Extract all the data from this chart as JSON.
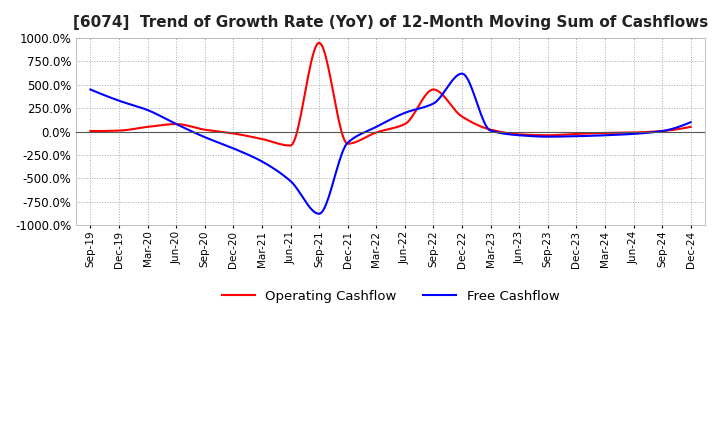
{
  "title": "[6074]  Trend of Growth Rate (YoY) of 12-Month Moving Sum of Cashflows",
  "title_fontsize": 11,
  "ylim": [
    -1000,
    1000
  ],
  "yticks": [
    -1000,
    -750,
    -500,
    -250,
    0,
    250,
    500,
    750,
    1000
  ],
  "ytick_labels": [
    "-1000.0%",
    "-750.0%",
    "-500.0%",
    "-250.0%",
    "0.0%",
    "250.0%",
    "500.0%",
    "750.0%",
    "1000.0%"
  ],
  "background_color": "#ffffff",
  "plot_bg_color": "#ffffff",
  "grid_color": "#aaaaaa",
  "operating_color": "#ff0000",
  "free_color": "#0000ff",
  "legend_labels": [
    "Operating Cashflow",
    "Free Cashflow"
  ],
  "x_labels": [
    "Sep-19",
    "Dec-19",
    "Mar-20",
    "Jun-20",
    "Sep-20",
    "Dec-20",
    "Mar-21",
    "Jun-21",
    "Sep-21",
    "Dec-21",
    "Mar-22",
    "Jun-22",
    "Sep-22",
    "Dec-22",
    "Mar-23",
    "Jun-23",
    "Sep-23",
    "Dec-23",
    "Mar-24",
    "Jun-24",
    "Sep-24",
    "Dec-24"
  ],
  "operating_cashflow": [
    5,
    10,
    50,
    80,
    20,
    -20,
    -80,
    -150,
    950,
    -130,
    -10,
    80,
    450,
    160,
    20,
    -30,
    -40,
    -25,
    -15,
    -10,
    5,
    50
  ],
  "free_cashflow": [
    450,
    330,
    230,
    80,
    -60,
    -180,
    -320,
    -530,
    -880,
    -120,
    50,
    200,
    300,
    620,
    10,
    -40,
    -55,
    -50,
    -40,
    -25,
    5,
    100
  ]
}
